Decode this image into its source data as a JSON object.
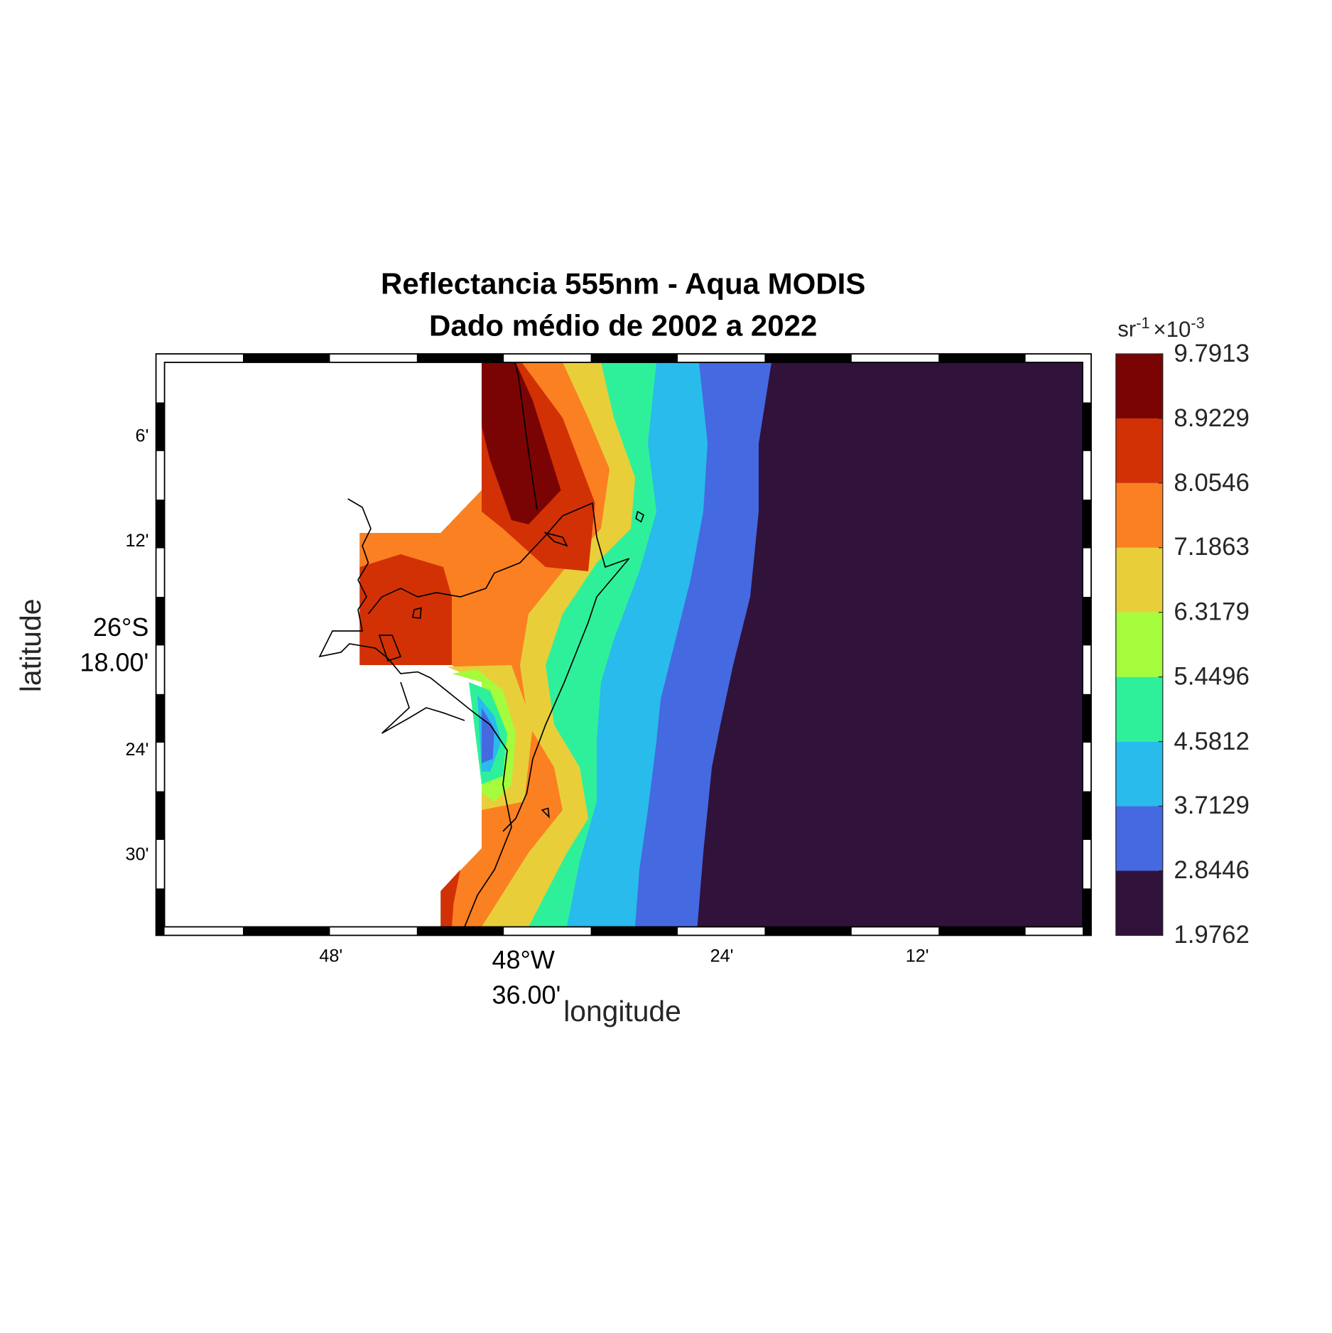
{
  "chart_data": {
    "type": "contour",
    "title": [
      "Reflectancia 555nm - Aqua MODIS",
      "Dado médio de 2002 a 2022"
    ],
    "x_label": "longitude",
    "y_label": "latitude",
    "xlim": [
      -48.979,
      -48.022
    ],
    "ylim": [
      -26.577,
      -26.021
    ],
    "xticks": [
      {
        "value": -48.8,
        "label": "48'"
      },
      {
        "value": -48.6,
        "label": "48°W\n36.00'"
      },
      {
        "value": -48.4,
        "label": "24'"
      },
      {
        "value": -48.2,
        "label": "12'"
      }
    ],
    "yticks": [
      {
        "value": -26.1,
        "label": "6'"
      },
      {
        "value": -26.2,
        "label": "12'"
      },
      {
        "value": -26.3,
        "label": "26°S\n18.00'"
      },
      {
        "value": -26.4,
        "label": "24'"
      },
      {
        "value": -26.5,
        "label": "30'"
      }
    ],
    "grid": true,
    "colorbar": {
      "unit": "sr",
      "unit_exp": "-1",
      "scale": "×10",
      "scale_exp": "-3",
      "levels": [
        1.9762,
        2.8446,
        3.7129,
        4.5812,
        5.4496,
        6.3179,
        7.1863,
        8.0546,
        8.9229,
        9.7913
      ],
      "colors": [
        "#30123b",
        "#4569e0",
        "#28bbec",
        "#2ff09a",
        "#a4fc3c",
        "#e8cf3a",
        "#fb8022",
        "#d23105",
        "#7a0403"
      ]
    }
  }
}
